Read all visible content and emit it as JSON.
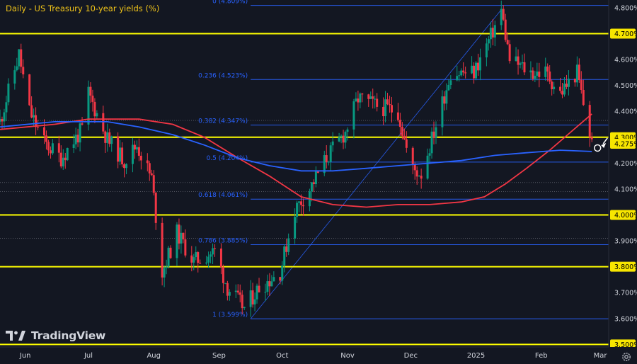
{
  "colors": {
    "background": "#131722",
    "grid": "#9598a1",
    "up": "#089981",
    "down": "#f23645",
    "ma_fast": "#f23645",
    "ma_slow": "#2962ff",
    "level": "#ffff00",
    "fib": "#2962ff",
    "axis_text": "#d1d4dc",
    "price_tag_bg": "#f7e600",
    "price_tag_text": "#000000"
  },
  "icons": {
    "logo": "tradingview-logo-icon",
    "settings": "gear-icon"
  },
  "logo_text": "TradingView",
  "chart_data": {
    "type": "candlestick",
    "title": "Daily - US Treasury 10-year yields (%)",
    "ylim": [
      3.49,
      4.83
    ],
    "y_ticks": [
      "4.800%",
      "4.700%",
      "4.600%",
      "4.500%",
      "4.400%",
      "4.300%",
      "4.200%",
      "4.100%",
      "4.000%",
      "3.900%",
      "3.800%",
      "3.700%",
      "3.600%",
      "3.500%"
    ],
    "y_tick_values": [
      4.8,
      4.7,
      4.6,
      4.5,
      4.4,
      4.3,
      4.2,
      4.1,
      4.0,
      3.9,
      3.8,
      3.7,
      3.6,
      3.5
    ],
    "x_axis": [
      {
        "label": "Jun",
        "date": "2024-06-01"
      },
      {
        "label": "Jul",
        "date": "2024-07-01"
      },
      {
        "label": "Aug",
        "date": "2024-08-01"
      },
      {
        "label": "Sep",
        "date": "2024-09-01"
      },
      {
        "label": "Oct",
        "date": "2024-10-01"
      },
      {
        "label": "Nov",
        "date": "2024-11-01"
      },
      {
        "label": "Dec",
        "date": "2024-12-01"
      },
      {
        "label": "2025",
        "date": "2025-01-01"
      },
      {
        "label": "Feb",
        "date": "2025-02-01"
      },
      {
        "label": "Mar",
        "date": "2025-03-01"
      }
    ],
    "xlim": [
      "2024-05-20",
      "2025-03-05"
    ],
    "last_price": {
      "label": "4.275%",
      "value": 4.275
    },
    "horizontal_levels": [
      {
        "value": 4.7,
        "label": "4.700%"
      },
      {
        "value": 4.3,
        "label": "4.300%"
      },
      {
        "value": 4.0,
        "label": "4.000%"
      },
      {
        "value": 3.8,
        "label": "3.800%"
      },
      {
        "value": 3.5,
        "label": "3.500%"
      }
    ],
    "fib_levels": [
      {
        "label": "0 (4.809%)",
        "value": 4.809
      },
      {
        "label": "0.236 (4.523%)",
        "value": 4.523
      },
      {
        "label": "0.382 (4.347%)",
        "value": 4.347
      },
      {
        "label": "0.5 (4.204%)",
        "value": 4.204
      },
      {
        "label": "0.618 (4.061%)",
        "value": 4.061
      },
      {
        "label": "0.786 (3.885%)",
        "value": 3.885
      },
      {
        "label": "1 (3.599%)",
        "value": 3.599
      }
    ],
    "fib_start": "2024-09-16",
    "fib_end": "2025-01-13",
    "extra_dotted_levels": [
      4.365,
      4.125,
      4.09,
      3.91,
      3.8
    ],
    "moving_averages": [
      {
        "key": "ma_fast",
        "points": [
          [
            "2024-05-20",
            4.33
          ],
          [
            "2024-06-15",
            4.35
          ],
          [
            "2024-07-01",
            4.37
          ],
          [
            "2024-07-25",
            4.37
          ],
          [
            "2024-08-10",
            4.35
          ],
          [
            "2024-08-25",
            4.3
          ],
          [
            "2024-09-10",
            4.22
          ],
          [
            "2024-09-25",
            4.15
          ],
          [
            "2024-10-10",
            4.07
          ],
          [
            "2024-10-25",
            4.04
          ],
          [
            "2024-11-10",
            4.03
          ],
          [
            "2024-11-25",
            4.04
          ],
          [
            "2024-12-10",
            4.04
          ],
          [
            "2024-12-25",
            4.05
          ],
          [
            "2025-01-05",
            4.07
          ],
          [
            "2025-01-15",
            4.12
          ],
          [
            "2025-01-25",
            4.18
          ],
          [
            "2025-02-05",
            4.25
          ],
          [
            "2025-02-15",
            4.32
          ],
          [
            "2025-02-25",
            4.39
          ]
        ]
      },
      {
        "key": "ma_slow",
        "points": [
          [
            "2024-05-20",
            4.34
          ],
          [
            "2024-06-15",
            4.36
          ],
          [
            "2024-07-10",
            4.36
          ],
          [
            "2024-07-25",
            4.34
          ],
          [
            "2024-08-10",
            4.31
          ],
          [
            "2024-08-25",
            4.27
          ],
          [
            "2024-09-10",
            4.22
          ],
          [
            "2024-09-25",
            4.19
          ],
          [
            "2024-10-10",
            4.17
          ],
          [
            "2024-10-25",
            4.17
          ],
          [
            "2024-11-10",
            4.18
          ],
          [
            "2024-11-25",
            4.19
          ],
          [
            "2024-12-10",
            4.2
          ],
          [
            "2024-12-25",
            4.21
          ],
          [
            "2025-01-10",
            4.23
          ],
          [
            "2025-01-25",
            4.24
          ],
          [
            "2025-02-10",
            4.25
          ],
          [
            "2025-02-25",
            4.245
          ]
        ]
      }
    ],
    "price_path": [
      [
        "2024-05-20",
        4.36
      ],
      [
        "2024-05-29",
        4.62
      ],
      [
        "2024-06-03",
        4.4
      ],
      [
        "2024-06-10",
        4.28
      ],
      [
        "2024-06-18",
        4.22
      ],
      [
        "2024-06-28",
        4.33
      ],
      [
        "2024-07-01",
        4.47
      ],
      [
        "2024-07-10",
        4.29
      ],
      [
        "2024-07-18",
        4.21
      ],
      [
        "2024-07-24",
        4.27
      ],
      [
        "2024-07-31",
        4.14
      ],
      [
        "2024-08-05",
        3.78
      ],
      [
        "2024-08-12",
        3.93
      ],
      [
        "2024-08-20",
        3.82
      ],
      [
        "2024-08-30",
        3.86
      ],
      [
        "2024-09-05",
        3.72
      ],
      [
        "2024-09-13",
        3.64
      ],
      [
        "2024-09-20",
        3.72
      ],
      [
        "2024-09-30",
        3.78
      ],
      [
        "2024-10-07",
        4.02
      ],
      [
        "2024-10-14",
        4.1
      ],
      [
        "2024-10-22",
        4.22
      ],
      [
        "2024-10-31",
        4.32
      ],
      [
        "2024-11-06",
        4.45
      ],
      [
        "2024-11-15",
        4.42
      ],
      [
        "2024-11-25",
        4.4
      ],
      [
        "2024-12-01",
        4.18
      ],
      [
        "2024-12-06",
        4.16
      ],
      [
        "2024-12-12",
        4.32
      ],
      [
        "2024-12-20",
        4.55
      ],
      [
        "2024-12-31",
        4.55
      ],
      [
        "2025-01-08",
        4.69
      ],
      [
        "2025-01-13",
        4.79
      ],
      [
        "2025-01-17",
        4.6
      ],
      [
        "2025-01-27",
        4.55
      ],
      [
        "2025-02-03",
        4.55
      ],
      [
        "2025-02-10",
        4.47
      ],
      [
        "2025-02-18",
        4.55
      ],
      [
        "2025-02-21",
        4.43
      ],
      [
        "2025-02-25",
        4.275
      ]
    ]
  }
}
